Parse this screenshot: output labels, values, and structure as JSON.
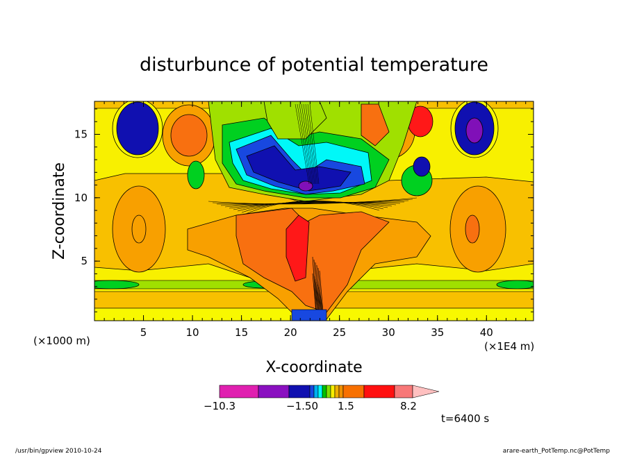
{
  "chart_data": {
    "type": "heatmap",
    "title": "disturbunce of potential temperature",
    "xlabel": "X-coordinate",
    "ylabel": "Z-coordinate",
    "x_unit": "(×1E4 m)",
    "y_unit": "(×1000 m)",
    "xlim": [
      0,
      44.8
    ],
    "ylim": [
      0.3,
      17.6
    ],
    "x_ticks": [
      5,
      10,
      15,
      20,
      25,
      30,
      35,
      40
    ],
    "y_ticks": [
      5,
      10,
      15
    ],
    "x_tick_labels": [
      "5",
      "10",
      "15",
      "20",
      "25",
      "30",
      "35",
      "40"
    ],
    "y_tick_labels": [
      "5",
      "10",
      "15"
    ],
    "colorbar": {
      "tick_labels": [
        "−10.3",
        "−1.50",
        "1.5",
        "8.2"
      ],
      "colors": [
        "#e020b0",
        "#8a10c0",
        "#1010b0",
        "#1848e0",
        "#00b0f0",
        "#00ffff",
        "#00c000",
        "#80e000",
        "#f8f000",
        "#f0b000",
        "#f09000",
        "#f87000",
        "#ff1010",
        "#f87878",
        "#ffc0c0"
      ]
    },
    "annotation": "t=6400 s",
    "fill_colors": {
      "background": "#f8f000",
      "bright_yellow": "#f8f800",
      "light_orange": "#f8c000",
      "orange": "#f8a000",
      "deep_orange": "#f87010",
      "red": "#ff1818",
      "green_yellow": "#a0e000",
      "green": "#00d020",
      "cyan": "#00f8f8",
      "blue": "#1848e0",
      "navy": "#1010b0",
      "purple": "#8010b8"
    }
  },
  "footer": {
    "left": "/usr/bin/gpview   2010-10-24",
    "right": "arare-earth_PotTemp.nc@PotTemp"
  }
}
